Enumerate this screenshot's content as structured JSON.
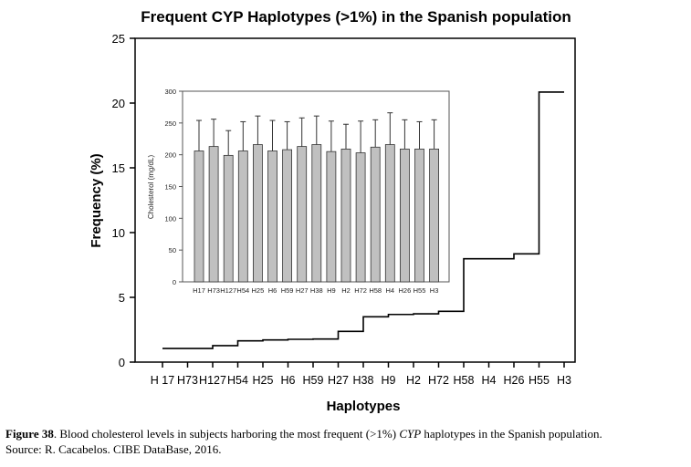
{
  "chart_data": [
    {
      "type": "line",
      "subtype": "step",
      "title": "Frequent CYP Haplotypes (>1%) in the Spanish population",
      "xlabel": "Haplotypes",
      "ylabel": "Frequency (%)",
      "ylim": [
        0,
        25
      ],
      "yticks": [
        0,
        5,
        10,
        15,
        20,
        25
      ],
      "categories": [
        "H 17",
        "H73",
        "H127",
        "H54",
        "H25",
        "H6",
        "H59",
        "H27",
        "H38",
        "H9",
        "H2",
        "H72",
        "H58",
        "H4",
        "H26",
        "H55",
        "H3"
      ],
      "values": [
        1.05,
        1.05,
        1.27,
        1.64,
        1.71,
        1.76,
        1.78,
        2.37,
        3.5,
        3.68,
        3.73,
        3.92,
        7.98,
        7.98,
        8.36,
        20.85,
        20.85
      ],
      "color": "#000000",
      "grid": false
    },
    {
      "type": "bar",
      "title": "",
      "xlabel": "",
      "ylabel": "Cholesterol (mg/dL)",
      "ylim": [
        0,
        300
      ],
      "yticks": [
        0,
        50,
        100,
        150,
        200,
        250,
        300
      ],
      "categories": [
        "H17",
        "H73",
        "H127",
        "H54",
        "H25",
        "H6",
        "H59",
        "H27",
        "H38",
        "H9",
        "H2",
        "H72",
        "H58",
        "H4",
        "H26",
        "H55",
        "H3"
      ],
      "values": [
        206,
        213,
        199,
        206,
        216,
        206,
        208,
        213,
        216,
        205,
        209,
        203,
        212,
        216,
        209,
        209,
        209
      ],
      "error_upper": [
        254,
        256,
        238,
        252,
        261,
        254,
        252,
        258,
        261,
        253,
        248,
        253,
        255,
        266,
        255,
        252,
        255
      ],
      "bar_color": "#c0c0c0",
      "grid": false
    }
  ],
  "caption": {
    "label": "Figure 38",
    "text_before_italic": ". Blood cholesterol levels in subjects harboring the most frequent (>1%) ",
    "italic": "CYP",
    "text_after_italic": " haplotypes in the Spanish population.",
    "source": "Source: R. Cacabelos. CIBE DataBase, 2016."
  }
}
